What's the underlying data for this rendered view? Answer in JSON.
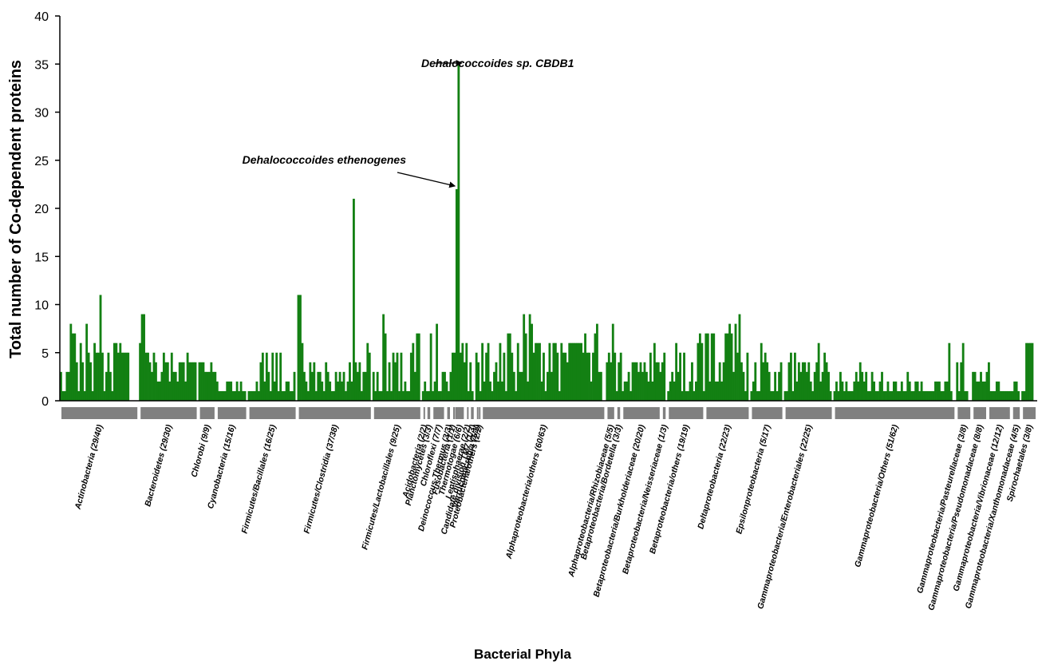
{
  "chart_data": {
    "type": "bar",
    "title": "",
    "xlabel": "Bacterial Phyla",
    "ylabel": "Total number of Co-dependent proteins",
    "ylim": [
      0,
      40
    ],
    "yticks": [
      0,
      5,
      10,
      15,
      20,
      25,
      30,
      35,
      40
    ],
    "bar_color": "#138013",
    "group_bar_color": "#808080",
    "groups": [
      {
        "label": "Actinobacteria (29/40)",
        "size": 40,
        "values": [
          3,
          1,
          1,
          3,
          3,
          8,
          7,
          7,
          4,
          1,
          6,
          4,
          1,
          8,
          5,
          4,
          1,
          6,
          5,
          5,
          11,
          5,
          1,
          3,
          5,
          3,
          1,
          6,
          6,
          5,
          6,
          5,
          5,
          5,
          5,
          0,
          0,
          0,
          0,
          0
        ]
      },
      {
        "label": "Bacteroidetes (29/30)",
        "size": 30,
        "values": [
          6,
          9,
          9,
          5,
          5,
          4,
          3,
          5,
          4,
          2,
          2,
          3,
          5,
          4,
          4,
          2,
          5,
          3,
          3,
          2,
          4,
          4,
          4,
          2,
          5,
          4,
          4,
          4,
          4,
          0
        ]
      },
      {
        "label": "Chlorobi (9/9)",
        "size": 9,
        "values": [
          4,
          4,
          4,
          3,
          3,
          3,
          4,
          3,
          3
        ]
      },
      {
        "label": "Cyanobacteria (15/16)",
        "size": 16,
        "values": [
          2,
          1,
          1,
          1,
          1,
          2,
          2,
          2,
          1,
          1,
          2,
          1,
          2,
          1,
          1,
          0
        ]
      },
      {
        "label": "Firmicutes/Bacillales (16/25)",
        "size": 25,
        "values": [
          1,
          1,
          1,
          1,
          2,
          1,
          4,
          5,
          2,
          5,
          3,
          1,
          5,
          2,
          5,
          1,
          5,
          1,
          1,
          2,
          2,
          1,
          1,
          3,
          0
        ]
      },
      {
        "label": "Firmicutes/Clostridia (37/38)",
        "size": 38,
        "values": [
          11,
          11,
          6,
          3,
          2,
          1,
          4,
          3,
          4,
          1,
          3,
          3,
          2,
          1,
          4,
          3,
          2,
          1,
          1,
          3,
          2,
          3,
          2,
          3,
          1,
          2,
          4,
          2,
          21,
          4,
          3,
          4,
          1,
          3,
          3,
          6,
          5,
          0
        ]
      },
      {
        "label": "Firmicutes/Lactobacillales (9/25)",
        "size": 25,
        "values": [
          3,
          1,
          3,
          1,
          1,
          9,
          7,
          1,
          4,
          1,
          5,
          4,
          5,
          1,
          5,
          1,
          2,
          1,
          1,
          5,
          6,
          3,
          7,
          7,
          0
        ]
      },
      {
        "label": "Acidobacteria (2/2)",
        "size": 2,
        "values": [
          1,
          2
        ]
      },
      {
        "label": "Planctomycetes (3/3)",
        "size": 3,
        "values": [
          1,
          1,
          7
        ]
      },
      {
        "label": "Chloroflexi (7/7)",
        "size": 7,
        "values": [
          1,
          2,
          8,
          1,
          1,
          3,
          3
        ]
      },
      {
        "label": "Deinococcus-Thermus (3/3)",
        "size": 3,
        "values": [
          2,
          1,
          3
        ]
      },
      {
        "label": "Fusobacteria (1/1)",
        "size": 1,
        "values": [
          5
        ]
      },
      {
        "label": "Thermotogae (6/6)",
        "size": 6,
        "values": [
          5,
          22,
          35,
          5,
          6,
          4
        ]
      },
      {
        "label": "Lentisphaerae (2/2)",
        "size": 2,
        "values": [
          6,
          1
        ]
      },
      {
        "label": "Candidate division TM7 (1/3)",
        "size": 3,
        "values": [
          4,
          1,
          0
        ]
      },
      {
        "label": "Verrucomicrobia (1/1)",
        "size": 1,
        "values": [
          5
        ]
      },
      {
        "label": "Proteobacteria/others (2/2)",
        "size": 2,
        "values": [
          4,
          1
        ]
      },
      {
        "label": "Alphaproteobacteria/others (60/63)",
        "size": 63,
        "values": [
          6,
          2,
          5,
          6,
          2,
          1,
          3,
          4,
          2,
          6,
          2,
          5,
          1,
          7,
          7,
          5,
          3,
          1,
          6,
          3,
          3,
          9,
          7,
          2,
          9,
          8,
          5,
          6,
          6,
          6,
          2,
          5,
          1,
          3,
          6,
          3,
          6,
          6,
          5,
          1,
          6,
          5,
          5,
          4,
          6,
          6,
          6,
          6,
          6,
          6,
          6,
          5,
          7,
          5,
          5,
          2,
          5,
          7,
          8,
          3,
          3,
          0,
          0
        ]
      },
      {
        "label": "Alphaproteobacteria/Rhizobiaceae (5/5)",
        "size": 5,
        "values": [
          4,
          5,
          4,
          8,
          5
        ]
      },
      {
        "label": "Betaproteobacteria/Bordetella (3/3)",
        "size": 3,
        "values": [
          1,
          4,
          5
        ]
      },
      {
        "label": "Betaproteobacteria/Burkholderiaceae (20/20)",
        "size": 20,
        "values": [
          1,
          2,
          2,
          3,
          1,
          4,
          4,
          4,
          3,
          4,
          3,
          4,
          3,
          2,
          5,
          2,
          6,
          4,
          4,
          3
        ]
      },
      {
        "label": "Betaproteobacteria/Neisseriaceae (1/3)",
        "size": 3,
        "values": [
          4,
          5,
          0
        ]
      },
      {
        "label": "Betaproteobacteria/others (19/19)",
        "size": 19,
        "values": [
          1,
          2,
          3,
          2,
          6,
          3,
          5,
          1,
          5,
          1,
          1,
          2,
          4,
          1,
          2,
          6,
          7,
          6,
          1
        ]
      },
      {
        "label": "Deltaproteobacteria (22/23)",
        "size": 23,
        "values": [
          7,
          7,
          2,
          7,
          7,
          2,
          2,
          4,
          2,
          4,
          7,
          7,
          8,
          7,
          3,
          8,
          5,
          9,
          4,
          3,
          1,
          5,
          0
        ]
      },
      {
        "label": "Epsilonproteobacteria (5/17)",
        "size": 17,
        "values": [
          1,
          2,
          4,
          1,
          1,
          6,
          4,
          5,
          4,
          3,
          1,
          1,
          3,
          1,
          3,
          4,
          0
        ]
      },
      {
        "label": "Gammaproteobacteria/Enterobacteriales (22/25)",
        "size": 25,
        "values": [
          1,
          1,
          4,
          5,
          1,
          5,
          2,
          4,
          3,
          4,
          4,
          3,
          4,
          2,
          1,
          3,
          4,
          6,
          2,
          3,
          5,
          4,
          3,
          1,
          0
        ]
      },
      {
        "label": "Gammaproteobacteria/Others (51/62)",
        "size": 62,
        "values": [
          1,
          2,
          1,
          3,
          2,
          1,
          2,
          1,
          1,
          1,
          2,
          3,
          2,
          4,
          3,
          2,
          3,
          1,
          1,
          3,
          2,
          1,
          1,
          2,
          3,
          1,
          1,
          2,
          1,
          1,
          2,
          2,
          1,
          1,
          2,
          1,
          1,
          3,
          2,
          1,
          1,
          2,
          2,
          1,
          2,
          1,
          1,
          1,
          1,
          1,
          1,
          2,
          2,
          2,
          1,
          1,
          2,
          2,
          6,
          1,
          0,
          0
        ]
      },
      {
        "label": "Gammaproteobacteria/Pasteurellaceae (3/8)",
        "size": 8,
        "values": [
          4,
          1,
          4,
          6,
          1,
          1,
          0,
          0
        ]
      },
      {
        "label": "Gammaproteobacteria/Pseudomonadaceae (8/8)",
        "size": 8,
        "values": [
          3,
          3,
          2,
          2,
          3,
          2,
          2,
          3
        ]
      },
      {
        "label": "Gammaproteobacteria/Vibrionaceae (12/12)",
        "size": 12,
        "values": [
          4,
          1,
          1,
          1,
          2,
          2,
          1,
          1,
          1,
          1,
          1,
          1
        ]
      },
      {
        "label": "Gammaproteobacteria/Xanthomonadaceae (4/5)",
        "size": 5,
        "values": [
          1,
          2,
          2,
          1,
          0
        ]
      },
      {
        "label": "Spirochaetales (3/8)",
        "size": 8,
        "values": [
          1,
          1,
          6,
          6,
          6,
          6,
          0,
          0
        ]
      }
    ],
    "annotations": [
      {
        "text": "Dehalococcoides sp. CBDB1",
        "target_value": 35
      },
      {
        "text": "Dehalococcoides ethenogenes",
        "target_value": 22
      }
    ]
  }
}
